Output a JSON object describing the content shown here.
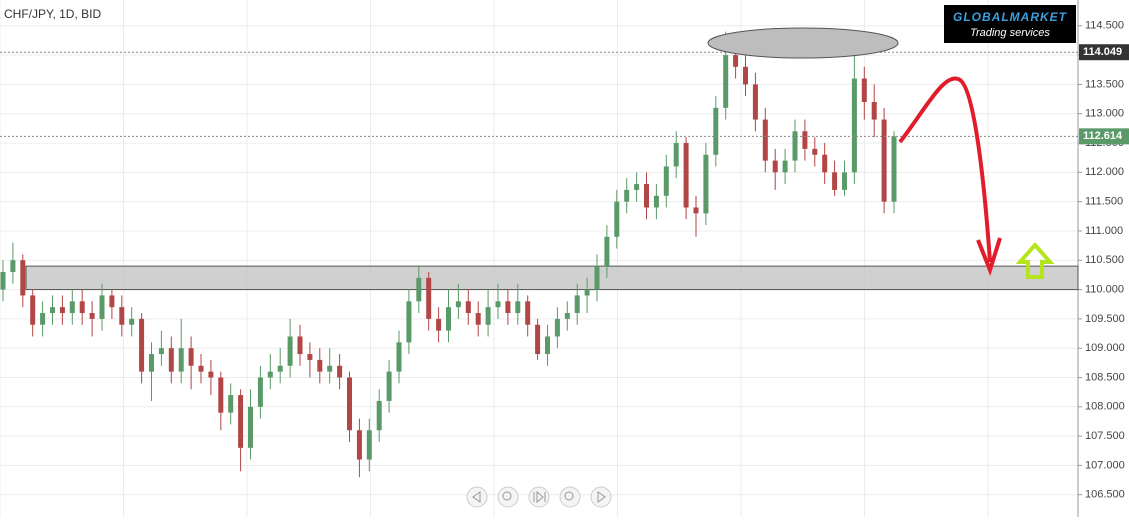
{
  "chart_data": {
    "type": "candlestick",
    "title": "CHF/JPY, 1D, BID",
    "up_color": "#5a9a68",
    "down_color": "#b24545",
    "ylim": [
      106.12,
      114.94
    ],
    "yticks": [
      {
        "value": 106.5,
        "label": "106.500"
      },
      {
        "value": 107,
        "label": "107.000"
      },
      {
        "value": 107.5,
        "label": "107.500"
      },
      {
        "value": 108,
        "label": "108.000"
      },
      {
        "value": 108.5,
        "label": "108.500"
      },
      {
        "value": 109,
        "label": "109.000"
      },
      {
        "value": 109.5,
        "label": "109.500"
      },
      {
        "value": 110,
        "label": "110.000"
      },
      {
        "value": 110.5,
        "label": "110.500"
      },
      {
        "value": 111,
        "label": "111.000"
      },
      {
        "value": 111.5,
        "label": "111.500"
      },
      {
        "value": 112,
        "label": "112.000"
      },
      {
        "value": 112.5,
        "label": "112.500"
      },
      {
        "value": 113,
        "label": "113.000"
      },
      {
        "value": 113.5,
        "label": "113.500"
      },
      {
        "value": 114,
        "label": "114.000"
      },
      {
        "value": 114.5,
        "label": "114.500"
      }
    ],
    "grid": true,
    "open": [
      110.0,
      110.3,
      110.5,
      109.9,
      109.4,
      109.6,
      109.7,
      109.6,
      109.8,
      109.6,
      109.5,
      109.9,
      109.7,
      109.4,
      109.5,
      108.6,
      108.9,
      109.0,
      108.6,
      109.0,
      108.7,
      108.6,
      108.5,
      107.9,
      108.2,
      107.3,
      108.0,
      108.5,
      108.6,
      108.7,
      109.2,
      108.9,
      108.8,
      108.6,
      108.7,
      108.5,
      107.6,
      107.1,
      107.6,
      108.1,
      108.6,
      109.1,
      109.8,
      110.2,
      109.5,
      109.3,
      109.7,
      109.8,
      109.6,
      109.4,
      109.7,
      109.8,
      109.6,
      109.8,
      109.4,
      108.9,
      109.2,
      109.5,
      109.6,
      109.9,
      110.0,
      110.4,
      110.9,
      111.5,
      111.7,
      111.8,
      111.4,
      111.6,
      112.1,
      112.5,
      111.4,
      111.3,
      112.3,
      113.1,
      114.0,
      113.8,
      113.5,
      112.9,
      112.2,
      112.0,
      112.2,
      112.7,
      112.4,
      112.3,
      112.0,
      111.7,
      112.0,
      113.6,
      113.2,
      112.9,
      111.5
    ],
    "high": [
      110.5,
      110.8,
      110.6,
      110.0,
      109.8,
      109.9,
      109.9,
      110.0,
      110.0,
      109.8,
      110.1,
      110.0,
      109.9,
      109.7,
      109.6,
      109.1,
      109.3,
      109.2,
      109.5,
      109.2,
      108.9,
      108.8,
      108.6,
      108.4,
      108.3,
      108.3,
      108.7,
      108.9,
      109.0,
      109.5,
      109.4,
      109.1,
      109.0,
      109.0,
      108.9,
      108.6,
      107.8,
      107.8,
      108.3,
      108.8,
      109.3,
      110.0,
      110.4,
      110.3,
      109.7,
      110.0,
      110.1,
      110.0,
      109.8,
      110.0,
      110.1,
      110.0,
      110.1,
      109.9,
      109.5,
      109.4,
      109.7,
      109.8,
      110.1,
      110.2,
      110.6,
      111.1,
      111.7,
      111.9,
      112.0,
      112.0,
      111.8,
      112.3,
      112.7,
      112.6,
      111.6,
      112.5,
      113.3,
      114.4,
      114.3,
      114.0,
      113.7,
      113.1,
      112.4,
      112.4,
      112.9,
      112.9,
      112.6,
      112.5,
      112.2,
      112.2,
      114.2,
      113.8,
      113.5,
      113.1,
      112.7
    ],
    "low": [
      109.8,
      110.1,
      109.7,
      109.2,
      109.2,
      109.4,
      109.4,
      109.4,
      109.4,
      109.2,
      109.3,
      109.5,
      109.2,
      109.2,
      108.4,
      108.1,
      108.7,
      108.4,
      108.4,
      108.3,
      108.4,
      108.2,
      107.6,
      107.7,
      106.9,
      107.1,
      107.8,
      108.3,
      108.4,
      108.5,
      108.7,
      108.5,
      108.4,
      108.4,
      108.3,
      107.4,
      106.8,
      106.9,
      107.4,
      107.9,
      108.4,
      108.9,
      109.6,
      109.3,
      109.1,
      109.1,
      109.5,
      109.4,
      109.2,
      109.2,
      109.5,
      109.4,
      109.4,
      109.2,
      108.8,
      108.7,
      109.0,
      109.3,
      109.4,
      109.6,
      109.8,
      110.2,
      110.7,
      111.3,
      111.5,
      111.2,
      111.2,
      111.4,
      111.9,
      111.2,
      110.9,
      111.1,
      112.1,
      112.9,
      113.6,
      113.3,
      112.7,
      112.0,
      111.7,
      111.8,
      112.0,
      112.2,
      112.1,
      111.8,
      111.6,
      111.6,
      111.8,
      112.9,
      112.6,
      111.3,
      111.3
    ],
    "close": [
      110.3,
      110.5,
      109.9,
      109.4,
      109.6,
      109.7,
      109.6,
      109.8,
      109.6,
      109.5,
      109.9,
      109.7,
      109.4,
      109.5,
      108.6,
      108.9,
      109.0,
      108.6,
      109.0,
      108.7,
      108.6,
      108.5,
      107.9,
      108.2,
      107.3,
      108.0,
      108.5,
      108.6,
      108.7,
      109.2,
      108.9,
      108.8,
      108.6,
      108.7,
      108.5,
      107.6,
      107.1,
      107.6,
      108.1,
      108.6,
      109.1,
      109.8,
      110.2,
      109.5,
      109.3,
      109.7,
      109.8,
      109.6,
      109.4,
      109.7,
      109.8,
      109.6,
      109.8,
      109.4,
      108.9,
      109.2,
      109.5,
      109.6,
      109.9,
      110.0,
      110.4,
      110.9,
      111.5,
      111.7,
      111.8,
      111.4,
      111.6,
      112.1,
      112.5,
      111.4,
      111.3,
      112.3,
      113.1,
      114.0,
      113.8,
      113.5,
      112.9,
      112.2,
      112.0,
      112.2,
      112.7,
      112.4,
      112.3,
      112.0,
      111.7,
      112.0,
      113.6,
      113.2,
      112.9,
      111.5,
      112.614
    ],
    "price_labels": [
      {
        "value": 114.049,
        "label": "114.049",
        "color": "#333333"
      },
      {
        "value": 112.614,
        "label": "112.614",
        "color": "#5a9a68"
      }
    ],
    "zone": [
      110.0,
      110.4
    ],
    "logo": {
      "name": "GLOBALMARKET",
      "tagline": "Trading services"
    }
  }
}
